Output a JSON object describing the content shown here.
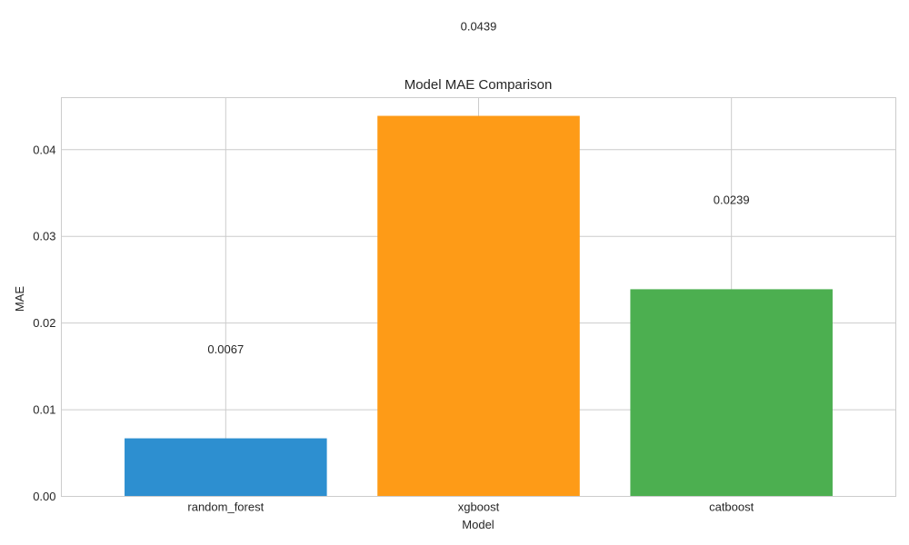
{
  "chart_data": {
    "type": "bar",
    "title": "Model MAE Comparison",
    "xlabel": "Model",
    "ylabel": "MAE",
    "categories": [
      "random_forest",
      "xgboost",
      "catboost"
    ],
    "values": [
      0.0067,
      0.0439,
      0.0239
    ],
    "value_labels": [
      "0.0067",
      "0.0439",
      "0.0239"
    ],
    "colors": [
      "#2d8fd0",
      "#fe9b17",
      "#4caf50"
    ],
    "ylim": [
      0,
      0.046
    ],
    "yticks": [
      0.0,
      0.01,
      0.02,
      0.03,
      0.04
    ],
    "ytick_labels": [
      "0.00",
      "0.01",
      "0.02",
      "0.03",
      "0.04"
    ],
    "grid": true
  }
}
